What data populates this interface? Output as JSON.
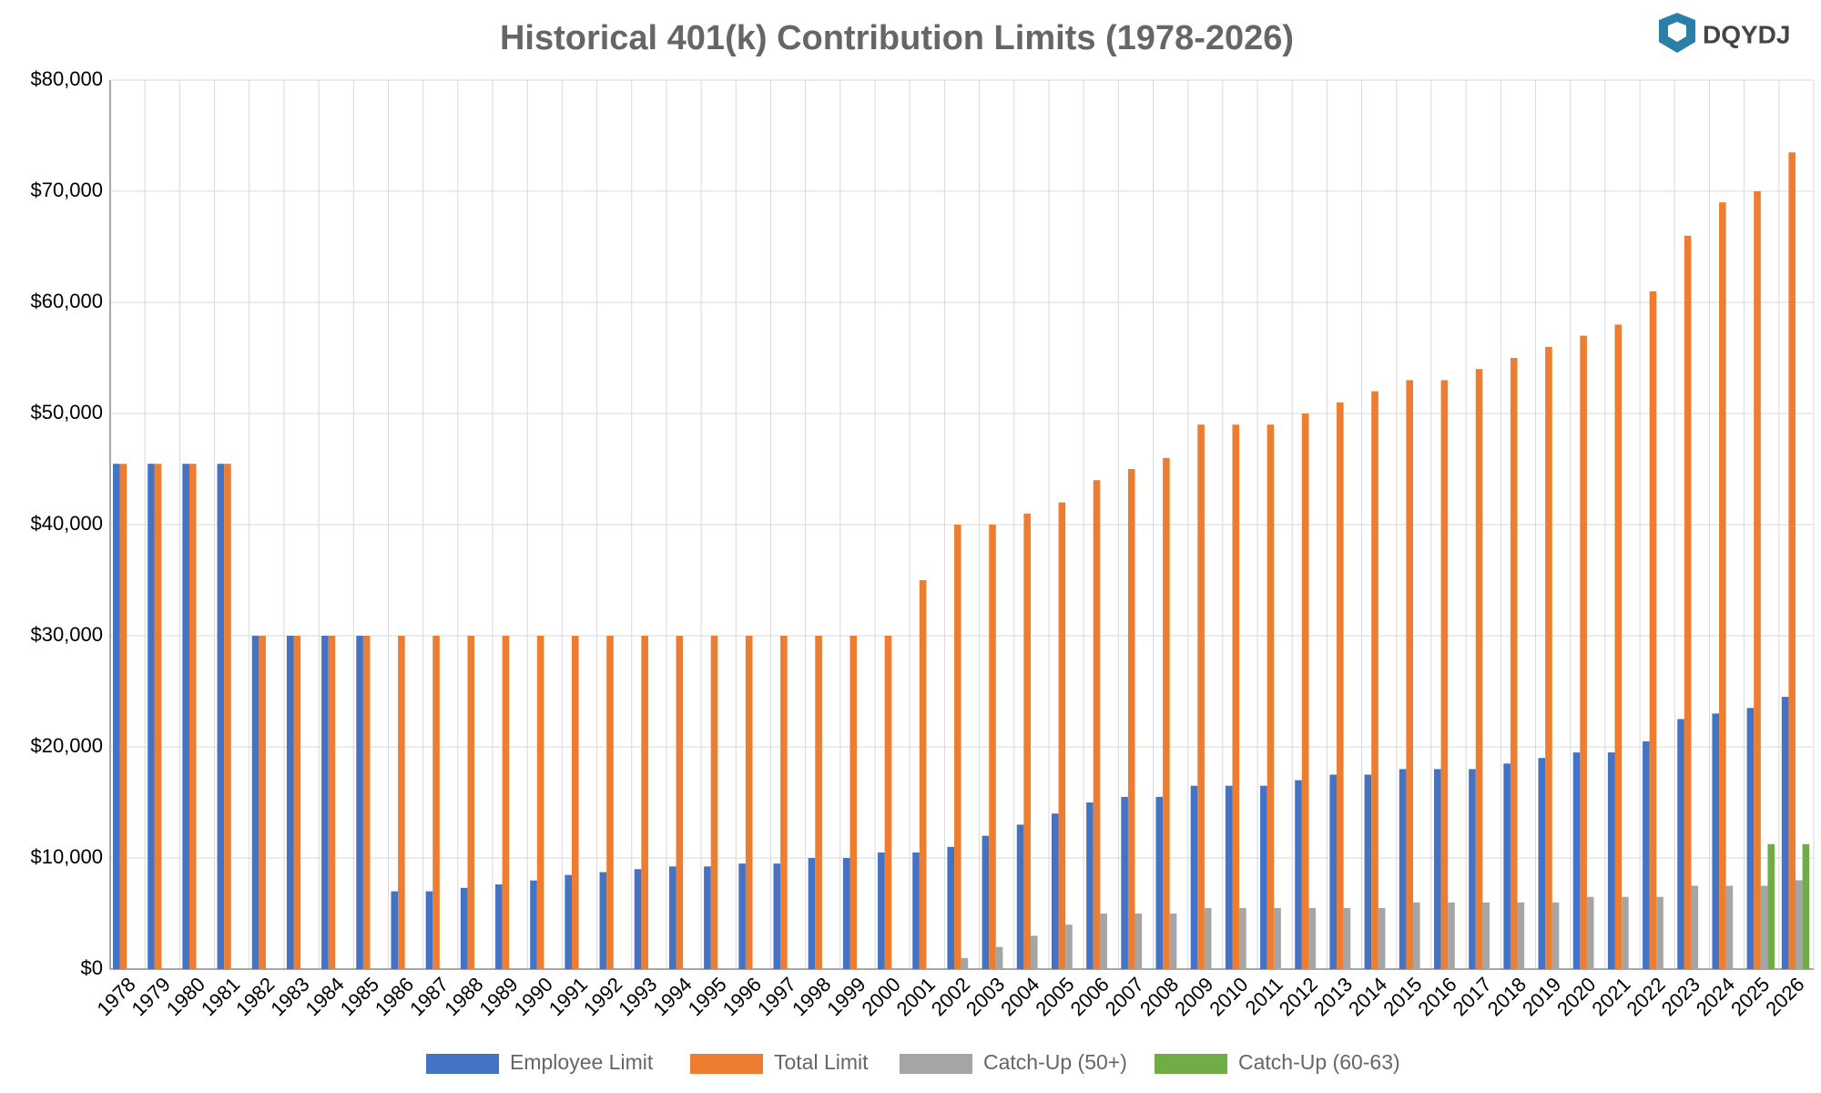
{
  "logo_text": "DQYDJ",
  "chart_data": {
    "type": "bar",
    "title": "Historical 401(k) Contribution Limits (1978-2026)",
    "categories": [
      "1978",
      "1979",
      "1980",
      "1981",
      "1982",
      "1983",
      "1984",
      "1985",
      "1986",
      "1987",
      "1988",
      "1989",
      "1990",
      "1991",
      "1992",
      "1993",
      "1994",
      "1995",
      "1996",
      "1997",
      "1998",
      "1999",
      "2000",
      "2001",
      "2002",
      "2003",
      "2004",
      "2005",
      "2006",
      "2007",
      "2008",
      "2009",
      "2010",
      "2011",
      "2012",
      "2013",
      "2014",
      "2015",
      "2016",
      "2017",
      "2018",
      "2019",
      "2020",
      "2021",
      "2022",
      "2023",
      "2024",
      "2025",
      "2026"
    ],
    "series": [
      {
        "name": "Employee Limit",
        "color": "#4472c4",
        "values": [
          45475,
          45475,
          45475,
          45475,
          30000,
          30000,
          30000,
          30000,
          7000,
          7000,
          7313,
          7627,
          7979,
          8475,
          8728,
          8994,
          9240,
          9240,
          9500,
          9500,
          10000,
          10000,
          10500,
          10500,
          11000,
          12000,
          13000,
          14000,
          15000,
          15500,
          15500,
          16500,
          16500,
          16500,
          17000,
          17500,
          17500,
          18000,
          18000,
          18000,
          18500,
          19000,
          19500,
          19500,
          20500,
          22500,
          23000,
          23500,
          24500
        ]
      },
      {
        "name": "Total Limit",
        "color": "#ed7d31",
        "values": [
          45475,
          45475,
          45475,
          45475,
          30000,
          30000,
          30000,
          30000,
          30000,
          30000,
          30000,
          30000,
          30000,
          30000,
          30000,
          30000,
          30000,
          30000,
          30000,
          30000,
          30000,
          30000,
          30000,
          35000,
          40000,
          40000,
          41000,
          42000,
          44000,
          45000,
          46000,
          49000,
          49000,
          49000,
          50000,
          51000,
          52000,
          53000,
          53000,
          54000,
          55000,
          56000,
          57000,
          58000,
          61000,
          66000,
          69000,
          70000,
          73500
        ]
      },
      {
        "name": "Catch-Up (50+)",
        "color": "#a5a5a5",
        "values": [
          null,
          null,
          null,
          null,
          null,
          null,
          null,
          null,
          null,
          null,
          null,
          null,
          null,
          null,
          null,
          null,
          null,
          null,
          null,
          null,
          null,
          null,
          null,
          null,
          1000,
          2000,
          3000,
          4000,
          5000,
          5000,
          5000,
          5500,
          5500,
          5500,
          5500,
          5500,
          5500,
          6000,
          6000,
          6000,
          6000,
          6000,
          6500,
          6500,
          6500,
          7500,
          7500,
          7500,
          8000
        ]
      },
      {
        "name": "Catch-Up (60-63)",
        "color": "#70ad47",
        "values": [
          null,
          null,
          null,
          null,
          null,
          null,
          null,
          null,
          null,
          null,
          null,
          null,
          null,
          null,
          null,
          null,
          null,
          null,
          null,
          null,
          null,
          null,
          null,
          null,
          null,
          null,
          null,
          null,
          null,
          null,
          null,
          null,
          null,
          null,
          null,
          null,
          null,
          null,
          null,
          null,
          null,
          null,
          null,
          null,
          null,
          null,
          null,
          11250,
          11250
        ]
      }
    ],
    "ylim": [
      0,
      80000
    ],
    "yticks": [
      {
        "value": 0,
        "label": "$0"
      },
      {
        "value": 10000,
        "label": "$10,000"
      },
      {
        "value": 20000,
        "label": "$20,000"
      },
      {
        "value": 30000,
        "label": "$30,000"
      },
      {
        "value": 40000,
        "label": "$40,000"
      },
      {
        "value": 50000,
        "label": "$50,000"
      },
      {
        "value": 60000,
        "label": "$60,000"
      },
      {
        "value": 70000,
        "label": "$70,000"
      },
      {
        "value": 80000,
        "label": "$80,000"
      }
    ],
    "grid": true,
    "legend": "bottom"
  }
}
